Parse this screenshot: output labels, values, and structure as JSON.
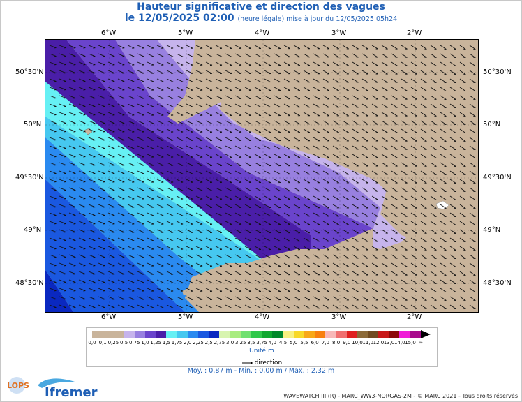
{
  "title": "Hauteur significative et direction des vagues",
  "date": "le 12/05/2025 02:00",
  "date_note": "(heure légale) mise à jour du 12/05/2025 05h24",
  "lon_labels": [
    "6°W",
    "5°W",
    "4°W",
    "3°W",
    "2°W"
  ],
  "lat_labels": [
    "50°30'N",
    "50°N",
    "49°30'N",
    "49°N",
    "48°30'N"
  ],
  "legend_labels": [
    "0,0",
    "0,1",
    "0,25",
    "0,5",
    "0,75",
    "1,0",
    "1,25",
    "1,5",
    "1,75",
    "2,0",
    "2,25",
    "2,5",
    "2,75",
    "3,0",
    "3,25",
    "3,5",
    "3,75",
    "4,0",
    "4,5",
    "5,0",
    "5,5",
    "6,0",
    "7,0",
    "8,0",
    "9,0",
    "10,0",
    "11,0",
    "12,0",
    "13,0",
    "14,0",
    "15,0",
    "∞"
  ],
  "legend_colors": [
    "#c9b49b",
    "#c9b49b",
    "#c9b49b",
    "#c6b4ec",
    "#9880e0",
    "#6a44cc",
    "#4a1ea8",
    "#66f0f4",
    "#46c8f0",
    "#2a8af0",
    "#1a58e0",
    "#0a28c0",
    "#d8f4b0",
    "#a8ec80",
    "#70e070",
    "#30c84a",
    "#10a830",
    "#00882a",
    "#f8f080",
    "#f8d828",
    "#f8a818",
    "#f88010",
    "#f8b8b8",
    "#f07070",
    "#e02020",
    "#8c6a38",
    "#704a20",
    "#c81818",
    "#8c0808",
    "#f01cd8",
    "#a80a8c"
  ],
  "unit": "Unité:m",
  "direction_label": "direction",
  "stats": "Moy. : 0,87 m  -  Min. : 0,00 m / Max. : 2,32 m",
  "credits": "WAVEWATCH III (R) - MARC_WW3-NORGAS-2M - © MARC 2021 - Tous droits réservés",
  "logos": {
    "lops": "LOPS",
    "ifremer": "Ifremer"
  }
}
